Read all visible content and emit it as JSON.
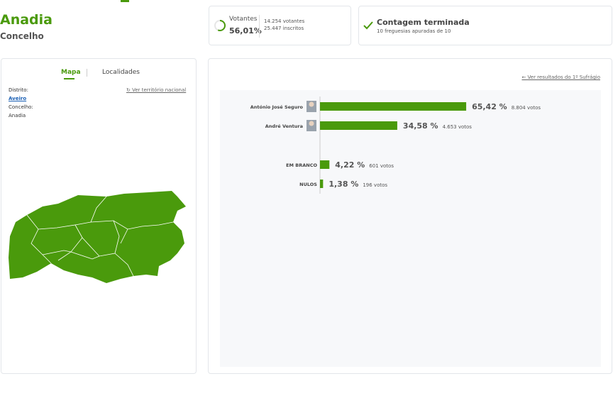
{
  "header": {
    "title": "Anadia",
    "subtitle": "Concelho"
  },
  "turnout": {
    "label": "Votantes",
    "percent": 56.01,
    "percent_label": "56,01%",
    "voters": "14.254 votantes",
    "registered": "25.447 inscritos"
  },
  "status": {
    "title": "Contagem terminada",
    "detail": "10 freguesias apuradas de 10"
  },
  "map_panel": {
    "tabs": [
      "Mapa",
      "Localidades"
    ],
    "link": "Ver território nacional",
    "district_label": "Distrito:",
    "district": "Aveiro",
    "municipality_label": "Concelho:",
    "municipality": "Anadia"
  },
  "results": {
    "type": "bar",
    "link": "Ver resultados do 1º Sufrágio",
    "categories": [
      "António José Seguro",
      "André Ventura",
      "EM BRANCO",
      "NULOS"
    ],
    "values": [
      65.42,
      34.58,
      4.22,
      1.38
    ],
    "value_labels": [
      "65,42 %",
      "34,58 %",
      "4,22 %",
      "1,38 %"
    ],
    "votes": [
      "8.804 votos",
      "4.653 votos",
      "601 votos",
      "196 votos"
    ],
    "color": "#4a9a0c",
    "xlim": [
      0,
      100
    ]
  }
}
